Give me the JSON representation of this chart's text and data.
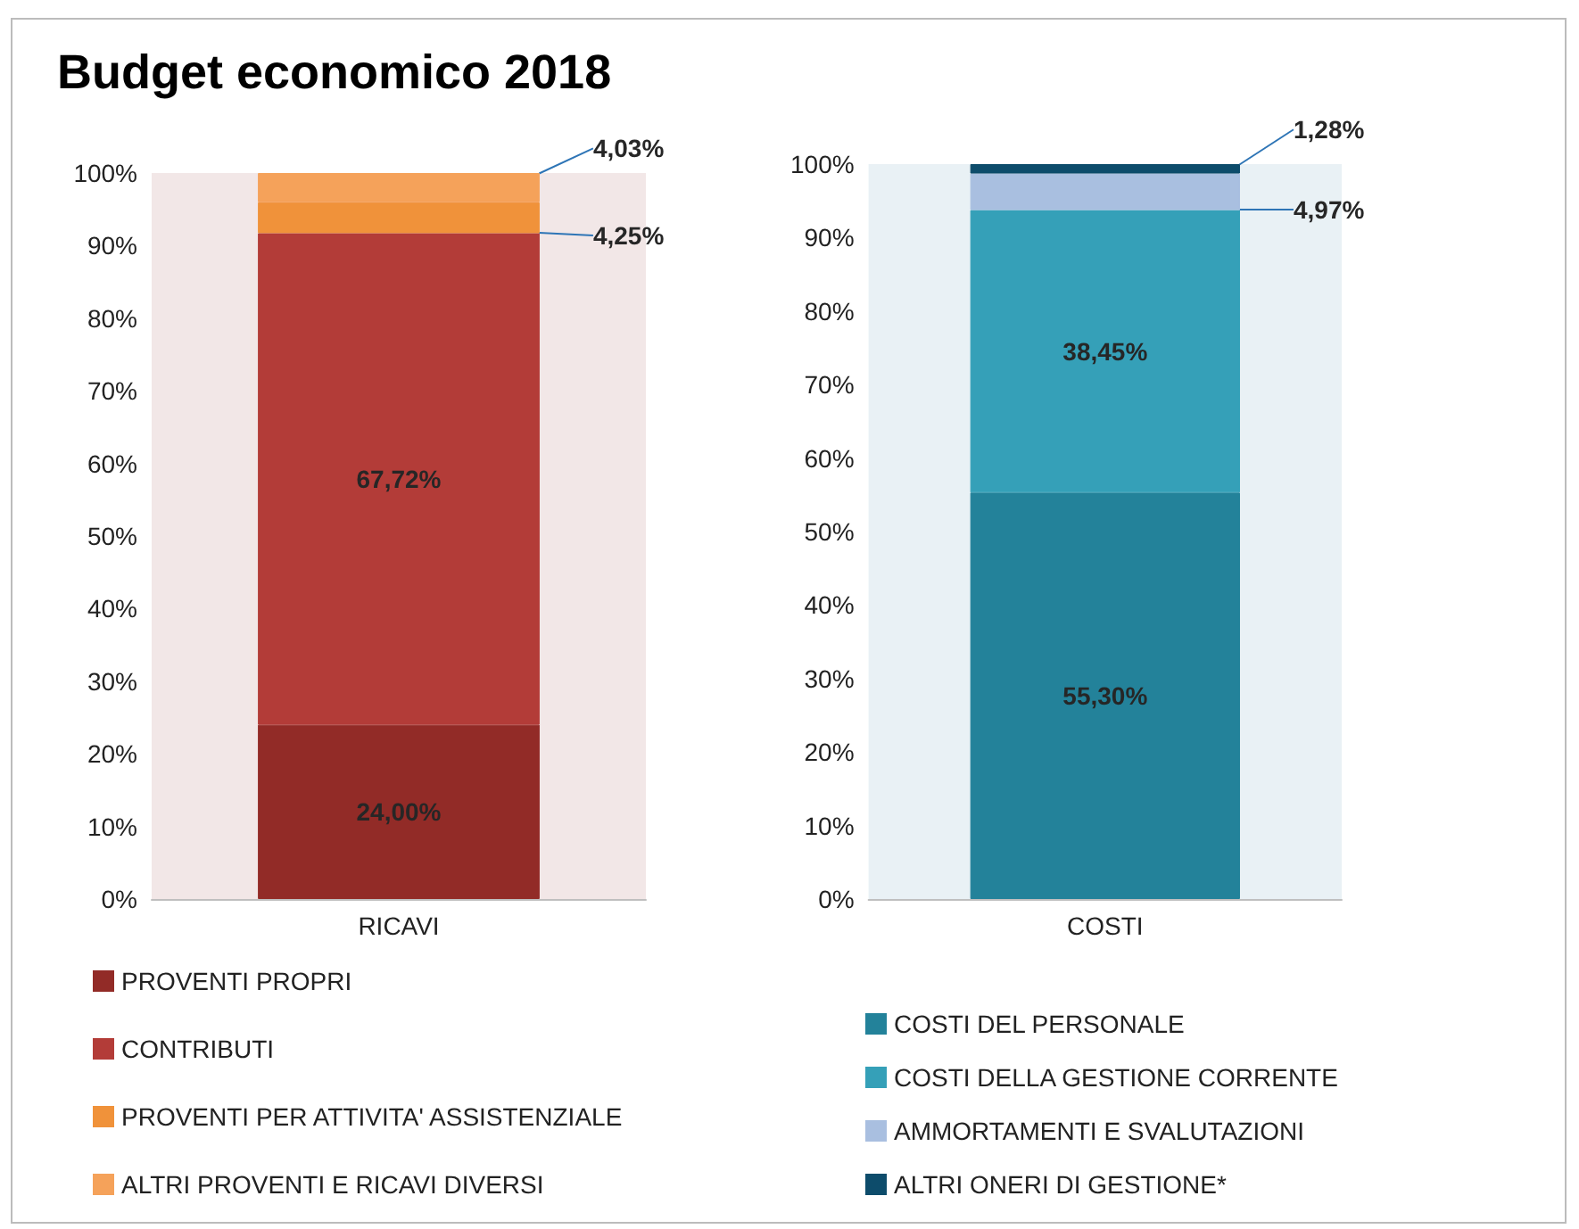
{
  "chart_data": [
    {
      "type": "bar",
      "title": "Budget economico 2018",
      "categories": [
        "RICAVI"
      ],
      "stacked": true,
      "ylim": [
        0,
        100
      ],
      "yticks": [
        {
          "value": 0,
          "label": "0%"
        },
        {
          "value": 10,
          "label": "10%"
        },
        {
          "value": 20,
          "label": "20%"
        },
        {
          "value": 30,
          "label": "30%"
        },
        {
          "value": 40,
          "label": "40%"
        },
        {
          "value": 50,
          "label": "50%"
        },
        {
          "value": 60,
          "label": "60%"
        },
        {
          "value": 70,
          "label": "70%"
        },
        {
          "value": 80,
          "label": "80%"
        },
        {
          "value": 90,
          "label": "90%"
        },
        {
          "value": 100,
          "label": "100%"
        }
      ],
      "grid": false,
      "legend": "bottom",
      "series": [
        {
          "name": "PROVENTI PROPRI",
          "color": "#922b27",
          "values": [
            24.0
          ],
          "value_labels": [
            "24,00%"
          ]
        },
        {
          "name": "CONTRIBUTI",
          "color": "#b33c38",
          "values": [
            67.72
          ],
          "value_labels": [
            "67,72%"
          ]
        },
        {
          "name": "PROVENTI PER ATTIVITA' ASSISTENZIALE",
          "color": "#f0923a",
          "values": [
            4.25
          ],
          "value_labels": [
            "4,25%"
          ]
        },
        {
          "name": "ALTRI PROVENTI E RICAVI DIVERSI",
          "color": "#f5a25a",
          "values": [
            4.03
          ],
          "value_labels": [
            "4,03%"
          ]
        }
      ]
    },
    {
      "type": "bar",
      "categories": [
        "COSTI"
      ],
      "stacked": true,
      "ylim": [
        0,
        100
      ],
      "yticks": [
        {
          "value": 0,
          "label": "0%"
        },
        {
          "value": 10,
          "label": "10%"
        },
        {
          "value": 20,
          "label": "20%"
        },
        {
          "value": 30,
          "label": "30%"
        },
        {
          "value": 40,
          "label": "40%"
        },
        {
          "value": 50,
          "label": "50%"
        },
        {
          "value": 60,
          "label": "60%"
        },
        {
          "value": 70,
          "label": "70%"
        },
        {
          "value": 80,
          "label": "80%"
        },
        {
          "value": 90,
          "label": "90%"
        },
        {
          "value": 100,
          "label": "100%"
        }
      ],
      "grid": false,
      "legend": "bottom",
      "series": [
        {
          "name": "COSTI DEL PERSONALE",
          "color": "#23829a",
          "values": [
            55.3
          ],
          "value_labels": [
            "55,30%"
          ]
        },
        {
          "name": "COSTI DELLA GESTIONE CORRENTE",
          "color": "#35a0b8",
          "values": [
            38.45
          ],
          "value_labels": [
            "38,45%"
          ]
        },
        {
          "name": "AMMORTAMENTI E SVALUTAZIONI",
          "color": "#a9bfe0",
          "values": [
            4.97
          ],
          "value_labels": [
            "4,97%"
          ]
        },
        {
          "name": "ALTRI ONERI DI GESTIONE*",
          "color": "#0d4c6b",
          "values": [
            1.28
          ],
          "value_labels": [
            "1,28%"
          ]
        }
      ]
    }
  ]
}
